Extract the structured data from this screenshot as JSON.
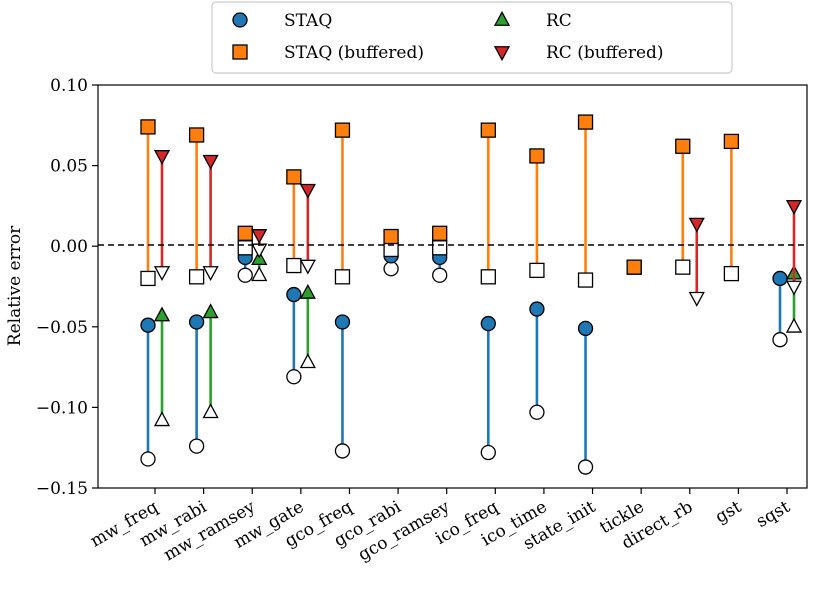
{
  "chart_data": {
    "type": "scatter",
    "ylabel": "Relative error",
    "xlabel": "",
    "ylim": [
      -0.15,
      0.1
    ],
    "yticks": [
      0.1,
      0.05,
      0.0,
      -0.05,
      -0.1,
      -0.15
    ],
    "ytick_labels": [
      "0.10",
      "0.05",
      "0.00",
      "−0.05",
      "−0.10",
      "−0.15"
    ],
    "zero_line": true,
    "grid": false,
    "legend_position": "top-center",
    "categories": [
      "mw_freq",
      "mw_rabi",
      "mw_ramsey",
      "mw_gate",
      "gco_freq",
      "gco_rabi",
      "gco_ramsey",
      "ico_freq",
      "ico_time",
      "state_init",
      "tickle",
      "direct_rb",
      "gst",
      "sqst"
    ],
    "legend": [
      {
        "name": "STAQ",
        "marker": "circle",
        "color": "#1f77b4"
      },
      {
        "name": "STAQ (buffered)",
        "marker": "square",
        "color": "#ff7f0e"
      },
      {
        "name": "RC",
        "marker": "triangle-up",
        "color": "#2ca02c"
      },
      {
        "name": "RC (buffered)",
        "marker": "triangle-down",
        "color": "#d62728"
      }
    ],
    "series": [
      {
        "name": "STAQ",
        "color": "#1f77b4",
        "offset": -1,
        "filled": [
          -0.049,
          -0.047,
          -0.007,
          -0.03,
          -0.047,
          -0.006,
          -0.007,
          -0.048,
          -0.039,
          -0.051,
          null,
          null,
          null,
          -0.02
        ],
        "hollow": [
          -0.132,
          -0.124,
          -0.018,
          -0.081,
          -0.127,
          -0.014,
          -0.018,
          -0.128,
          -0.103,
          -0.137,
          null,
          null,
          null,
          -0.058
        ]
      },
      {
        "name": "STAQ (buffered)",
        "color": "#ff7f0e",
        "offset": -1,
        "filled": [
          0.074,
          0.069,
          0.008,
          0.043,
          0.072,
          0.006,
          0.008,
          0.072,
          0.056,
          0.077,
          -0.013,
          0.062,
          0.065,
          null
        ],
        "hollow": [
          -0.02,
          -0.019,
          -0.001,
          -0.012,
          -0.019,
          -0.002,
          -0.001,
          -0.019,
          -0.015,
          -0.021,
          -0.013,
          -0.013,
          -0.017,
          null
        ]
      },
      {
        "name": "RC",
        "color": "#2ca02c",
        "offset": 1,
        "filled": [
          -0.043,
          -0.041,
          -0.008,
          -0.029,
          null,
          null,
          null,
          null,
          null,
          null,
          null,
          null,
          null,
          -0.017
        ],
        "hollow": [
          -0.108,
          -0.103,
          -0.018,
          -0.072,
          null,
          null,
          null,
          null,
          null,
          null,
          null,
          null,
          null,
          -0.05
        ]
      },
      {
        "name": "RC (buffered)",
        "color": "#d62728",
        "offset": 1,
        "filled": [
          0.056,
          0.053,
          0.007,
          0.035,
          null,
          null,
          null,
          null,
          null,
          null,
          null,
          0.014,
          null,
          0.025
        ],
        "hollow": [
          -0.016,
          -0.016,
          -0.002,
          -0.012,
          null,
          null,
          null,
          null,
          null,
          null,
          null,
          -0.032,
          null,
          -0.025
        ]
      }
    ]
  }
}
